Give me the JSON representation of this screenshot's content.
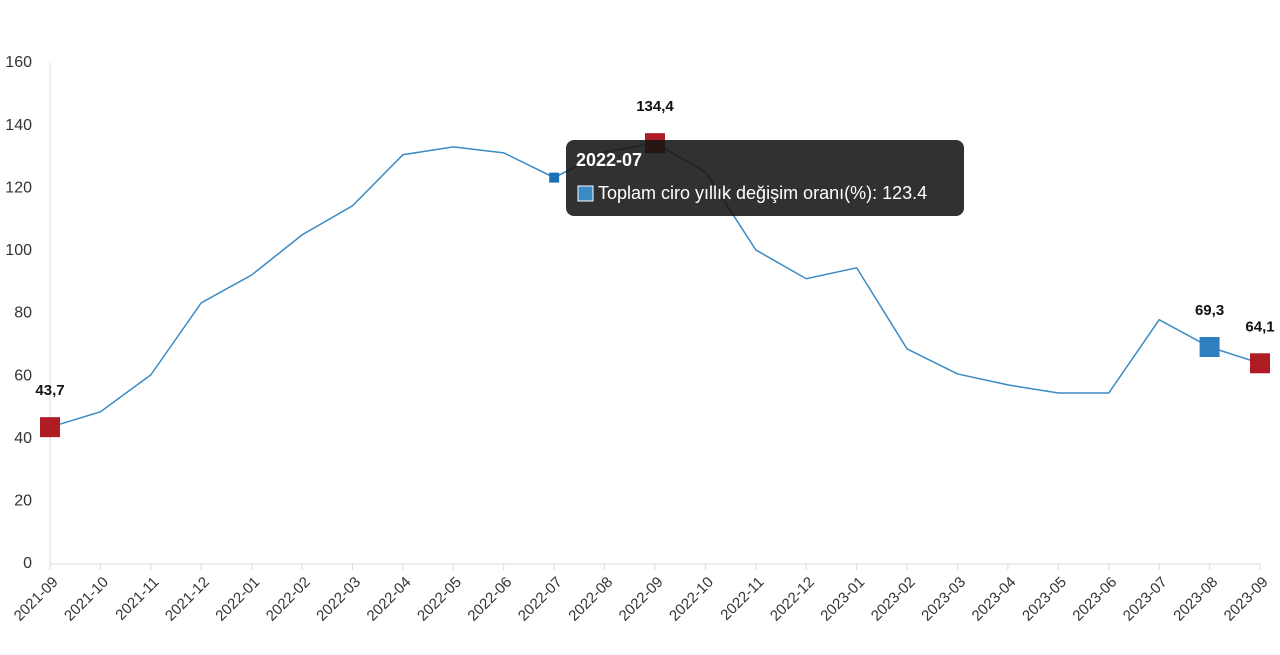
{
  "chart_data": {
    "type": "line",
    "x": [
      "2021-09",
      "2021-10",
      "2021-11",
      "2021-12",
      "2022-01",
      "2022-02",
      "2022-03",
      "2022-04",
      "2022-05",
      "2022-06",
      "2022-07",
      "2022-08",
      "2022-09",
      "2022-10",
      "2022-11",
      "2022-12",
      "2023-01",
      "2023-02",
      "2023-03",
      "2023-04",
      "2023-05",
      "2023-06",
      "2023-07",
      "2023-08",
      "2023-09"
    ],
    "series": [
      {
        "name": "Toplam ciro yıllık değişim oranı(%)",
        "color": "#3a8ac4",
        "values": [
          43.7,
          48.6,
          60.4,
          83.4,
          92.3,
          105.1,
          114.4,
          130.7,
          133.2,
          131.3,
          123.4,
          131.5,
          134.4,
          125.2,
          100.3,
          91.1,
          94.6,
          68.7,
          60.7,
          57.2,
          54.6,
          54.6,
          78,
          69.3,
          64.1
        ],
        "markers": [
          "#b01c24",
          null,
          null,
          null,
          null,
          null,
          null,
          null,
          null,
          null,
          null,
          null,
          "#b01c24",
          null,
          null,
          null,
          null,
          null,
          null,
          null,
          null,
          null,
          null,
          "#2f7fc1",
          "#b01c24"
        ],
        "value_labels": [
          "43,7",
          null,
          null,
          null,
          null,
          null,
          null,
          null,
          null,
          null,
          null,
          null,
          "134,4",
          null,
          null,
          null,
          null,
          null,
          null,
          null,
          null,
          null,
          null,
          "69,3",
          "64,1"
        ]
      }
    ],
    "ylim": [
      0,
      160
    ],
    "yticks": [
      0,
      20,
      40,
      60,
      80,
      100,
      120,
      140,
      160
    ],
    "hover_index": 10,
    "hover_color": "#1f6fb5"
  }
}
